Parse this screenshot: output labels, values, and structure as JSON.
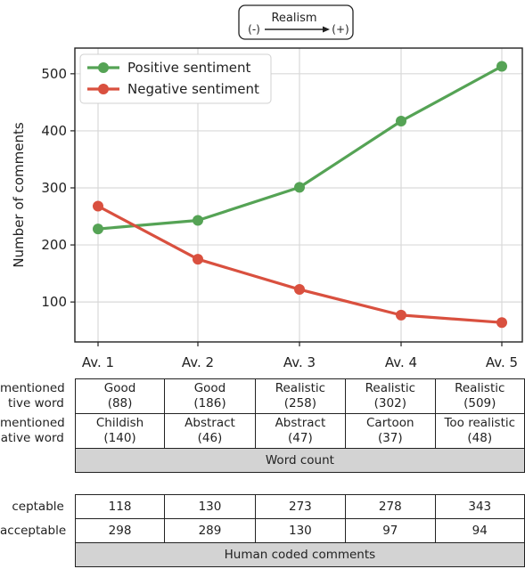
{
  "chart_data": {
    "type": "line",
    "categories": [
      "Av. 1",
      "Av. 2",
      "Av. 3",
      "Av. 4",
      "Av. 5"
    ],
    "series": [
      {
        "name": "Positive sentiment",
        "color": "#55a355",
        "values": [
          228,
          243,
          301,
          417,
          513
        ]
      },
      {
        "name": "Negative sentiment",
        "color": "#d9503f",
        "values": [
          268,
          175,
          122,
          77,
          64
        ]
      }
    ],
    "ylabel": "Number of comments",
    "yticks": [
      100,
      200,
      300,
      400,
      500
    ],
    "ylim": [
      30,
      545
    ],
    "grid": true,
    "legend": "top-left",
    "realism_scale": {
      "title": "Realism",
      "left": "(-)",
      "right": "(+)"
    }
  },
  "table_words": {
    "rows": [
      {
        "label": "mentioned\ntive word",
        "cells": [
          [
            "Good",
            "(88)"
          ],
          [
            "Good",
            "(186)"
          ],
          [
            "Realistic",
            "(258)"
          ],
          [
            "Realistic",
            "(302)"
          ],
          [
            "Realistic",
            "(509)"
          ]
        ]
      },
      {
        "label": "mentioned\native word",
        "cells": [
          [
            "Childish",
            "(140)"
          ],
          [
            "Abstract",
            "(46)"
          ],
          [
            "Abstract",
            "(47)"
          ],
          [
            "Cartoon",
            "(37)"
          ],
          [
            "Too realistic",
            "(48)"
          ]
        ]
      }
    ],
    "caption": "Word count"
  },
  "table_coded": {
    "rows": [
      {
        "label": "ceptable",
        "cells": [
          "118",
          "130",
          "273",
          "278",
          "343"
        ]
      },
      {
        "label": "acceptable",
        "cells": [
          "298",
          "289",
          "130",
          "97",
          "94"
        ]
      }
    ],
    "caption": "Human coded comments"
  }
}
